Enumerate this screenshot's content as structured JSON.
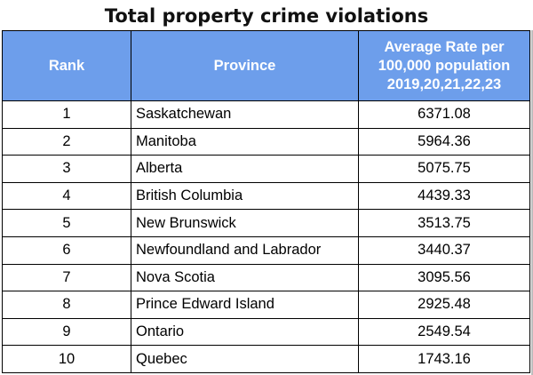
{
  "title": "Total property crime violations",
  "header": {
    "rank": "Rank",
    "province": "Province",
    "rate_lines": [
      "Average Rate per",
      "100,000 population",
      "2019,20,21,22,23"
    ]
  },
  "rows": [
    {
      "rank": "1",
      "province": "Saskatchewan",
      "rate": "6371.08"
    },
    {
      "rank": "2",
      "province": "Manitoba",
      "rate": "5964.36"
    },
    {
      "rank": "3",
      "province": "Alberta",
      "rate": "5075.75"
    },
    {
      "rank": "4",
      "province": "British Columbia",
      "rate": "4439.33"
    },
    {
      "rank": "5",
      "province": "New Brunswick",
      "rate": "3513.75"
    },
    {
      "rank": "6",
      "province": "Newfoundland and Labrador",
      "rate": "3440.37"
    },
    {
      "rank": "7",
      "province": "Nova Scotia",
      "rate": "3095.56"
    },
    {
      "rank": "8",
      "province": "Prince Edward Island",
      "rate": "2925.48"
    },
    {
      "rank": "9",
      "province": "Ontario",
      "rate": "2549.54"
    },
    {
      "rank": "10",
      "province": "Quebec",
      "rate": "1743.16"
    }
  ],
  "colors": {
    "header_bg": "#6d9eeb",
    "header_text": "#ffffff",
    "border": "#000000"
  }
}
